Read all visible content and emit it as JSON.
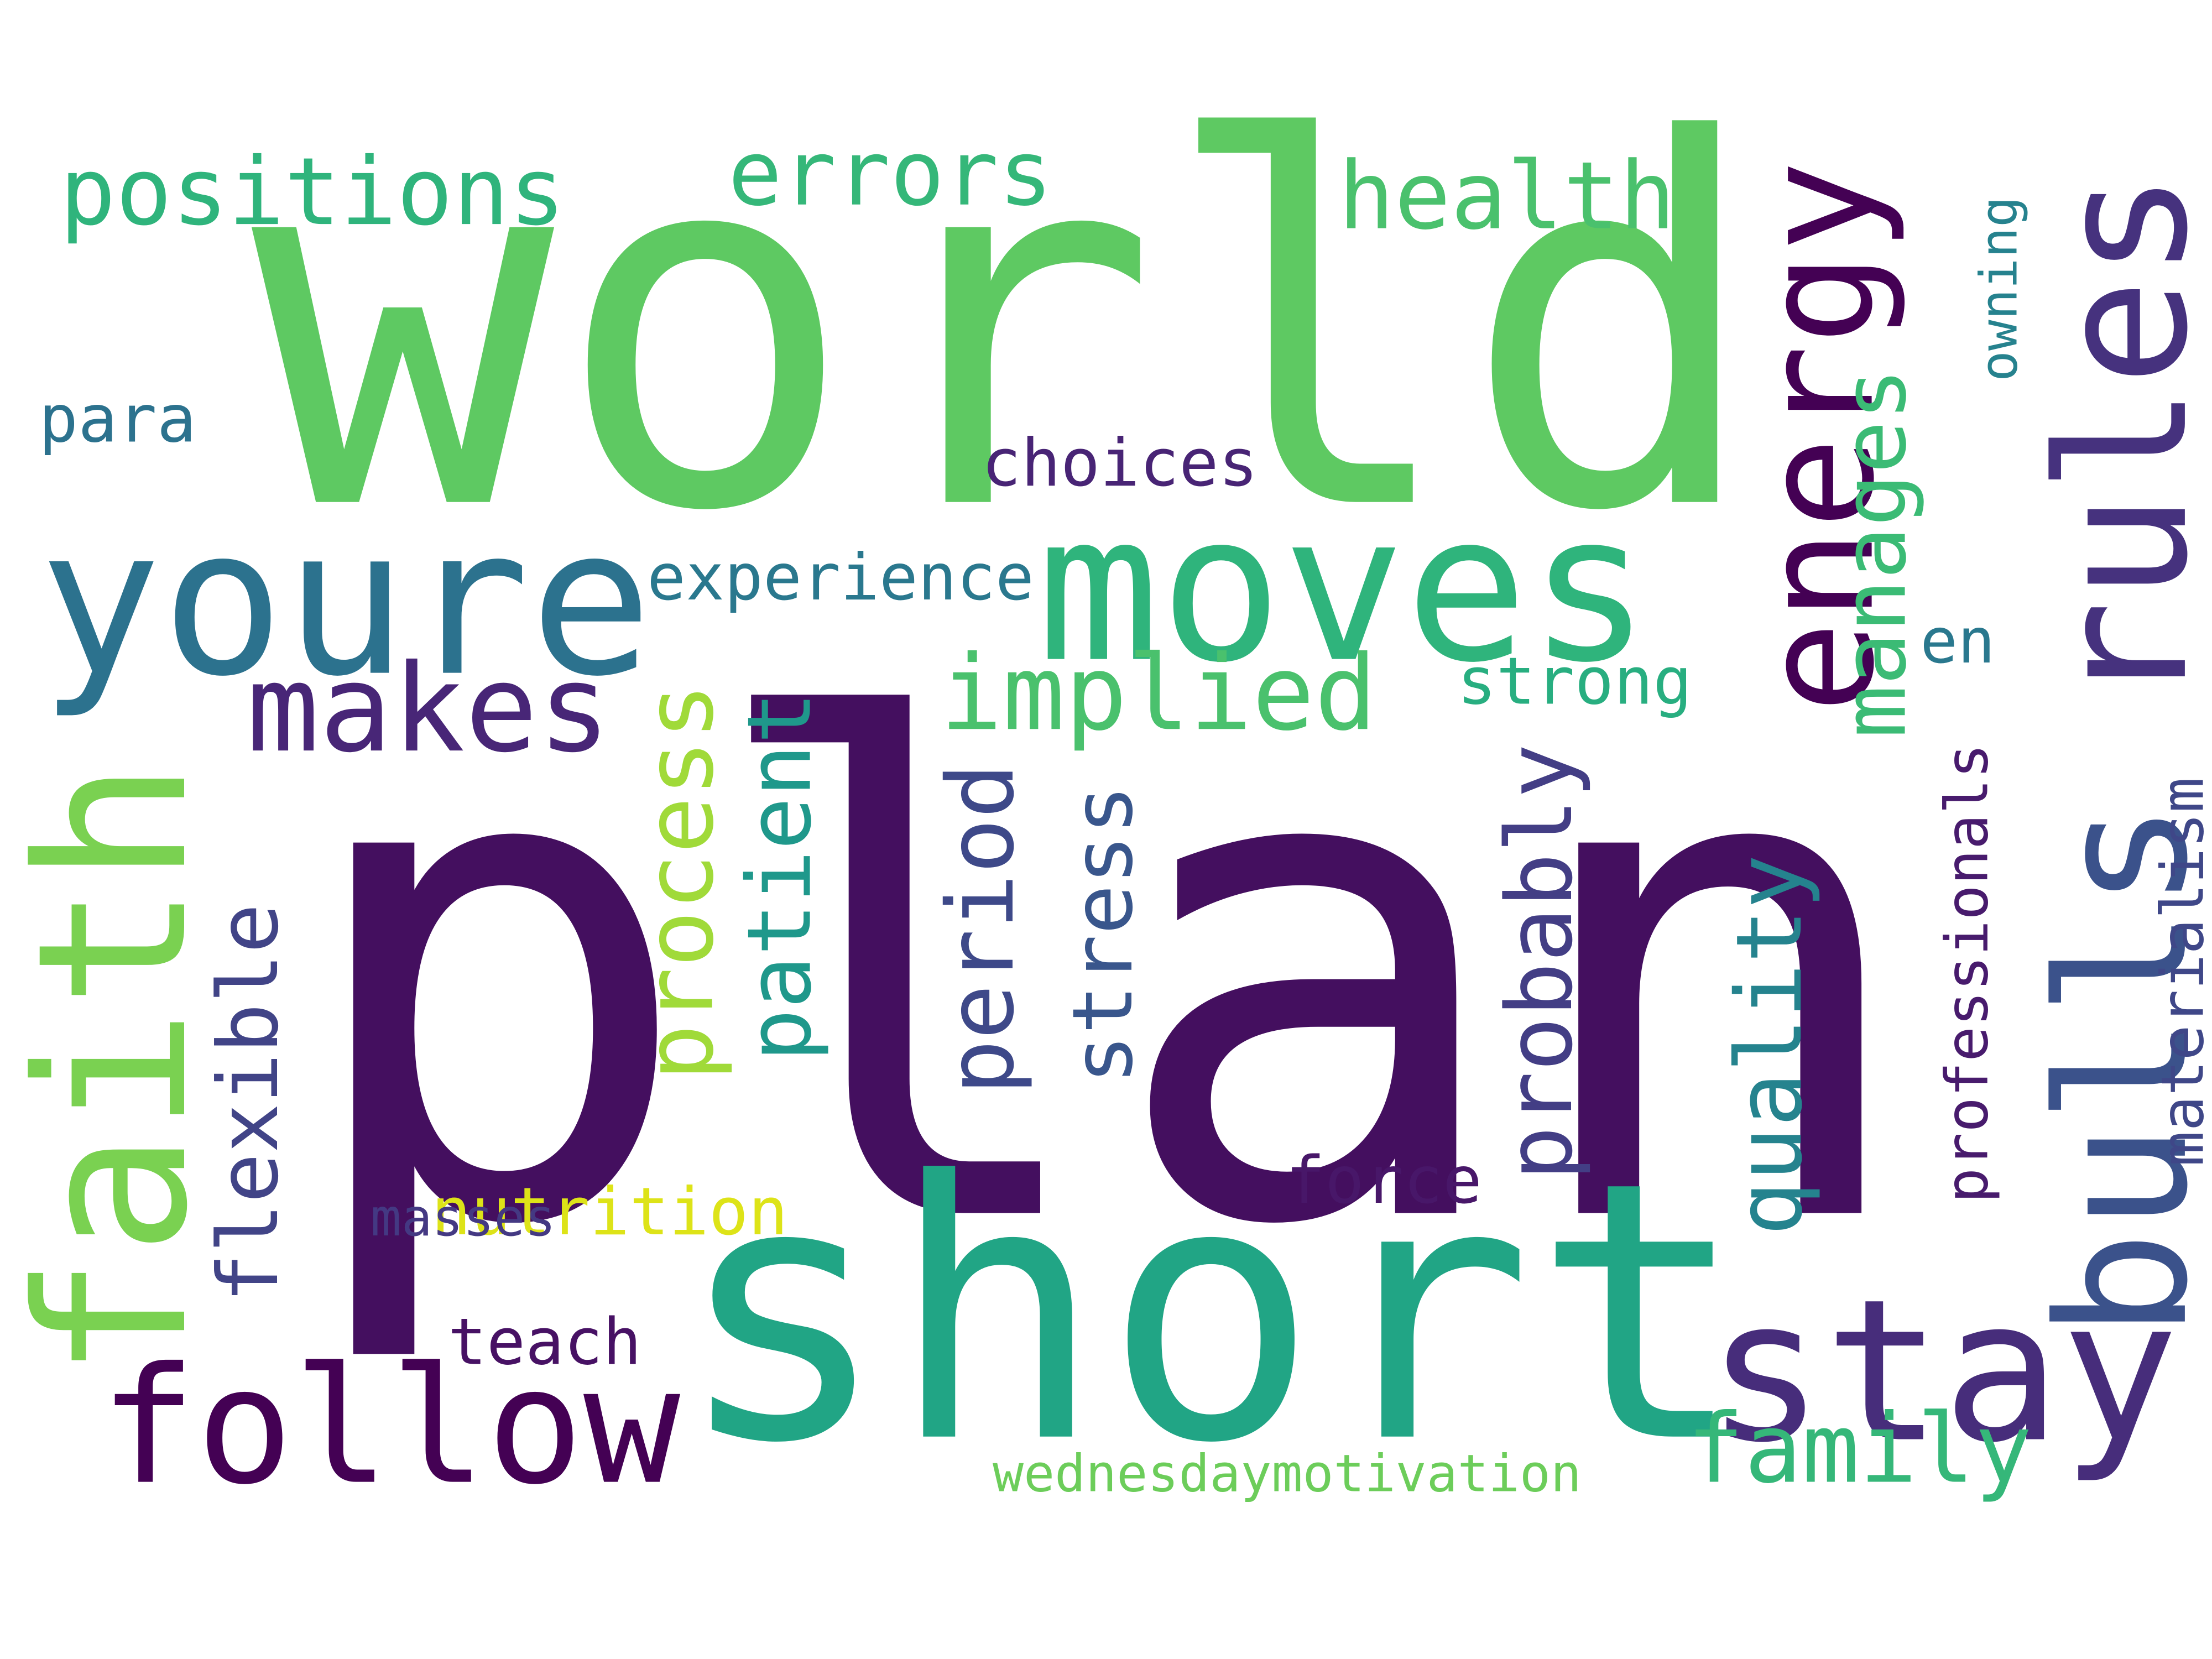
{
  "words": [
    {
      "id": "world",
      "text": "world",
      "color": "#5ec962",
      "vertical": false
    },
    {
      "id": "plan",
      "text": "plan",
      "color": "#440f5f",
      "vertical": false
    },
    {
      "id": "short",
      "text": "short",
      "color": "#21a585",
      "vertical": false
    },
    {
      "id": "youre",
      "text": "youre",
      "color": "#2c728e",
      "vertical": false
    },
    {
      "id": "moves",
      "text": "moves",
      "color": "#2fb47c",
      "vertical": false
    },
    {
      "id": "faith",
      "text": "faith",
      "color": "#7ad151",
      "vertical": true
    },
    {
      "id": "bulls",
      "text": "bulls",
      "color": "#3b528b",
      "vertical": true
    },
    {
      "id": "rules",
      "text": "rules",
      "color": "#46327e",
      "vertical": true
    },
    {
      "id": "stay",
      "text": "stay",
      "color": "#472d7b",
      "vertical": false
    },
    {
      "id": "energy",
      "text": "energy",
      "color": "#440154",
      "vertical": true
    },
    {
      "id": "follow",
      "text": "follow",
      "color": "#440154",
      "vertical": false
    },
    {
      "id": "makes",
      "text": "makes",
      "color": "#482677",
      "vertical": false
    },
    {
      "id": "positions",
      "text": "positions",
      "color": "#2fb47c",
      "vertical": false
    },
    {
      "id": "errors",
      "text": "errors",
      "color": "#35b779",
      "vertical": false
    },
    {
      "id": "health",
      "text": "health",
      "color": "#4ac16d",
      "vertical": false
    },
    {
      "id": "implied",
      "text": "implied",
      "color": "#4ac16d",
      "vertical": false
    },
    {
      "id": "process",
      "text": "process",
      "color": "#a0da39",
      "vertical": true
    },
    {
      "id": "patient",
      "text": "patient",
      "color": "#1f988b",
      "vertical": true
    },
    {
      "id": "period",
      "text": "period",
      "color": "#3e4989",
      "vertical": true
    },
    {
      "id": "stress",
      "text": "stress",
      "color": "#39568c",
      "vertical": true
    },
    {
      "id": "probably",
      "text": "probably",
      "color": "#433e85",
      "vertical": true
    },
    {
      "id": "quality",
      "text": "quality",
      "color": "#25838e",
      "vertical": true
    },
    {
      "id": "manages",
      "text": "manages",
      "color": "#3bbb75",
      "vertical": true
    },
    {
      "id": "flexible",
      "text": "flexible",
      "color": "#414487",
      "vertical": true
    },
    {
      "id": "family",
      "text": "family",
      "color": "#35b779",
      "vertical": false
    },
    {
      "id": "choices",
      "text": "choices",
      "color": "#482475",
      "vertical": false
    },
    {
      "id": "experience",
      "text": "experience",
      "color": "#2a788e",
      "vertical": false
    },
    {
      "id": "strong",
      "text": "strong",
      "color": "#28ae80",
      "vertical": false
    },
    {
      "id": "para",
      "text": "para",
      "color": "#2c728e",
      "vertical": false
    },
    {
      "id": "en",
      "text": "en",
      "color": "#2a788e",
      "vertical": false
    },
    {
      "id": "owning",
      "text": "owning",
      "color": "#26828e",
      "vertical": true
    },
    {
      "id": "professionals",
      "text": "professionals",
      "color": "#481b6d",
      "vertical": true
    },
    {
      "id": "materialism",
      "text": "materialism",
      "color": "#3f4788",
      "vertical": true
    },
    {
      "id": "nutrition",
      "text": "nutrition",
      "color": "#dde318",
      "vertical": false
    },
    {
      "id": "force",
      "text": "force",
      "color": "#481769",
      "vertical": false
    },
    {
      "id": "masses",
      "text": "masses",
      "color": "#443983",
      "vertical": false
    },
    {
      "id": "teach",
      "text": "teach",
      "color": "#471164",
      "vertical": false
    },
    {
      "id": "wednesdaymotivation",
      "text": "wednesdaymotivation",
      "color": "#6ccd5a",
      "vertical": false
    }
  ]
}
